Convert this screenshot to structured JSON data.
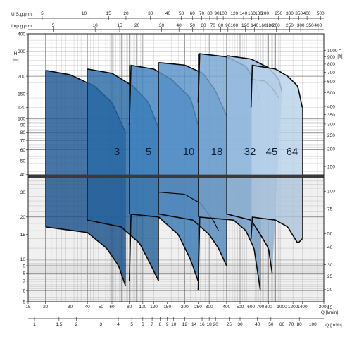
{
  "chart_data": {
    "type": "area",
    "title": "",
    "xscale": "log",
    "yscale": "log",
    "xlim_lmin": [
      15,
      2000
    ],
    "ylim_left_m": [
      5,
      400
    ],
    "ylim_right_ft": [
      15,
      1310
    ],
    "grid": true,
    "axes": {
      "left": {
        "unit": "H",
        "unit2": "[m]",
        "ticks": [
          5,
          6,
          7,
          8,
          9,
          10,
          15,
          20,
          30,
          40,
          50,
          60,
          70,
          80,
          90,
          100,
          120,
          150,
          200,
          300,
          400
        ]
      },
      "right": {
        "unit": "H",
        "unit2": "[ft]",
        "ticks": [
          15,
          20,
          25,
          30,
          40,
          50,
          75,
          100,
          150,
          200,
          250,
          300,
          350,
          400,
          500,
          600,
          700,
          800,
          900,
          1000
        ]
      },
      "bottom_lmin": {
        "unit": "Q [l/min]",
        "ticks": [
          15,
          20,
          30,
          40,
          50,
          60,
          80,
          100,
          120,
          150,
          200,
          250,
          300,
          400,
          500,
          600,
          700,
          800,
          1000,
          1200,
          1400,
          2000
        ]
      },
      "bottom_m3h": {
        "unit": "Q [m³/h]",
        "ticks": [
          1,
          1.5,
          2,
          3,
          4,
          5,
          6,
          7,
          8,
          9,
          10,
          12,
          14,
          16,
          18,
          20,
          25,
          30,
          40,
          50,
          60,
          70,
          80,
          100
        ]
      },
      "top_usgpm": {
        "unit": "U.S.g.p.m.",
        "ticks": [
          5,
          10,
          15,
          20,
          30,
          40,
          50,
          60,
          70,
          80,
          90,
          100,
          120,
          140,
          160,
          180,
          200,
          250,
          300,
          350,
          400,
          500
        ]
      },
      "top_impgpm": {
        "unit": "Imp.g.p.m.",
        "ticks": [
          5,
          10,
          15,
          20,
          30,
          40,
          50,
          60,
          70,
          80,
          90,
          100,
          120,
          140,
          160,
          180,
          200,
          250,
          300,
          350,
          400
        ]
      }
    },
    "band_y_m": [
      40,
      38
    ],
    "series": [
      {
        "name": "3",
        "color": "#1d5792",
        "hi": [
          [
            20,
            220
          ],
          [
            30,
            205
          ],
          [
            45,
            170
          ],
          [
            60,
            130
          ],
          [
            75,
            80
          ]
        ],
        "lo": [
          [
            20,
            17
          ],
          [
            40,
            15.5
          ],
          [
            55,
            12
          ],
          [
            67,
            9
          ],
          [
            75,
            6.5
          ]
        ],
        "mid": null
      },
      {
        "name": "5",
        "color": "#2a6aa6",
        "hi": [
          [
            40,
            225
          ],
          [
            60,
            210
          ],
          [
            85,
            170
          ],
          [
            110,
            130
          ],
          [
            130,
            85
          ]
        ],
        "lo": [
          [
            40,
            19
          ],
          [
            70,
            17
          ],
          [
            95,
            13
          ],
          [
            115,
            9
          ],
          [
            130,
            7
          ]
        ],
        "mid": null
      },
      {
        "name": "10",
        "color": "#3e81bd",
        "hi": [
          [
            80,
            240
          ],
          [
            120,
            225
          ],
          [
            160,
            190
          ],
          [
            220,
            140
          ],
          [
            250,
            90
          ]
        ],
        "lo": [
          [
            80,
            21
          ],
          [
            130,
            20
          ],
          [
            180,
            15
          ],
          [
            220,
            10
          ],
          [
            250,
            7
          ]
        ],
        "mid": null
      },
      {
        "name": "18",
        "color": "#5891c8",
        "hi": [
          [
            130,
            250
          ],
          [
            200,
            240
          ],
          [
            270,
            210
          ],
          [
            330,
            160
          ],
          [
            400,
            105
          ]
        ],
        "lo": [
          [
            130,
            21
          ],
          [
            230,
            19
          ],
          [
            300,
            15
          ],
          [
            350,
            12
          ],
          [
            400,
            9
          ]
        ],
        "mid": [
          [
            130,
            30
          ],
          [
            200,
            29
          ],
          [
            260,
            25
          ],
          [
            320,
            19
          ],
          [
            350,
            16
          ]
        ]
      },
      {
        "name": "32",
        "color": "#76a5d2",
        "hi": [
          [
            250,
            290
          ],
          [
            400,
            275
          ],
          [
            550,
            235
          ],
          [
            650,
            180
          ],
          [
            700,
            130
          ]
        ],
        "lo": [
          [
            250,
            20
          ],
          [
            450,
            19
          ],
          [
            550,
            16
          ],
          [
            630,
            12
          ],
          [
            700,
            6
          ]
        ],
        "mid": null
      },
      {
        "name": "45",
        "color": "#97bcde",
        "hi": [
          [
            400,
            280
          ],
          [
            600,
            265
          ],
          [
            800,
            230
          ],
          [
            950,
            190
          ],
          [
            1000,
            155
          ]
        ],
        "lo": [
          [
            400,
            21
          ],
          [
            600,
            19
          ],
          [
            700,
            15
          ],
          [
            800,
            12
          ],
          [
            850,
            8
          ]
        ],
        "mid": [
          [
            600,
            190
          ],
          [
            750,
            185
          ],
          [
            850,
            165
          ],
          [
            950,
            140
          ]
        ]
      },
      {
        "name": "64",
        "color": "#b9d2ea",
        "hi": [
          [
            600,
            240
          ],
          [
            900,
            225
          ],
          [
            1100,
            200
          ],
          [
            1300,
            170
          ],
          [
            1400,
            120
          ]
        ],
        "lo": [
          [
            600,
            20
          ],
          [
            900,
            19
          ],
          [
            1100,
            17
          ],
          [
            1300,
            13
          ],
          [
            1400,
            14
          ]
        ],
        "mid": null
      }
    ]
  }
}
